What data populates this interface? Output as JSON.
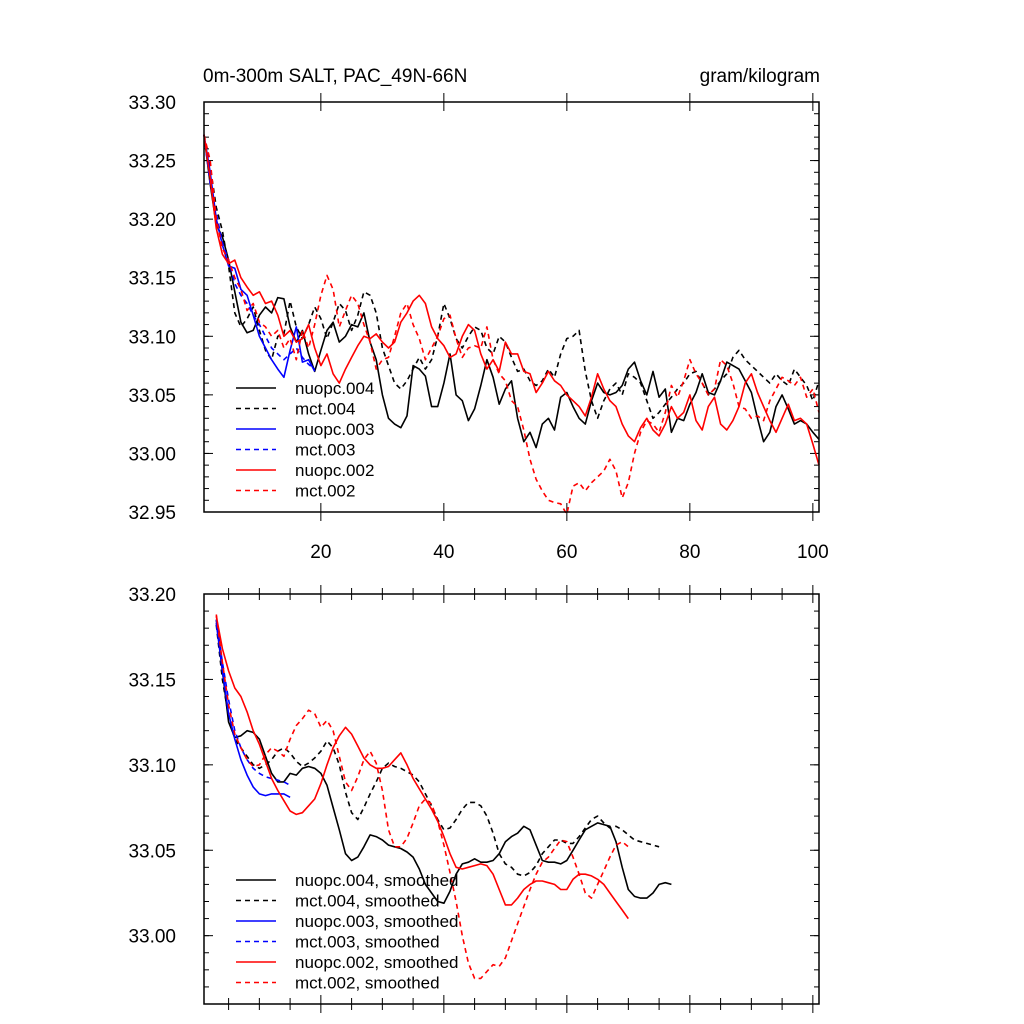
{
  "chart_data": [
    {
      "type": "line",
      "title": "0m-300m SALT, PAC_49N-66N",
      "units": "gram/kilogram",
      "xlim": [
        1,
        101
      ],
      "ylim": [
        32.95,
        33.3
      ],
      "xticks": [
        20,
        40,
        60,
        80,
        100
      ],
      "xtick_labels": [
        "20",
        "40",
        "60",
        "80",
        "100"
      ],
      "yticks": [
        32.95,
        33.0,
        33.05,
        33.1,
        33.15,
        33.2,
        33.25,
        33.3
      ],
      "ytick_labels": [
        "32.95",
        "33.00",
        "33.05",
        "33.10",
        "33.15",
        "33.20",
        "33.25",
        "33.30"
      ],
      "legend_position": "lower-left",
      "series": [
        {
          "name": "nuopc.004",
          "color": "#000000",
          "dash": "solid",
          "x_start": 1,
          "values": [
            33.272,
            33.23,
            33.195,
            33.185,
            33.165,
            33.138,
            33.112,
            33.103,
            33.105,
            33.118,
            33.125,
            33.12,
            33.133,
            33.132,
            33.108,
            33.095,
            33.105,
            33.085,
            33.07,
            33.088,
            33.105,
            33.112,
            33.095,
            33.1,
            33.11,
            33.108,
            33.12,
            33.095,
            33.08,
            33.05,
            33.03,
            33.025,
            33.022,
            33.032,
            33.075,
            33.072,
            33.066,
            33.04,
            33.04,
            33.06,
            33.085,
            33.05,
            33.045,
            33.028,
            33.038,
            33.058,
            33.08,
            33.065,
            33.042,
            33.055,
            33.062,
            33.03,
            33.01,
            33.018,
            33.005,
            33.025,
            33.03,
            33.02,
            33.048,
            33.052,
            33.04,
            33.03,
            33.025,
            33.045,
            33.06,
            33.052,
            33.05,
            33.052,
            33.058,
            33.072,
            33.078,
            33.062,
            33.05,
            33.07,
            33.048,
            33.055,
            33.018,
            33.03,
            33.028,
            33.042,
            33.052,
            33.068,
            33.052,
            33.05,
            33.062,
            33.078,
            33.075,
            33.072,
            33.062,
            33.052,
            33.03,
            33.01,
            33.018,
            33.04,
            33.05,
            33.038,
            33.025,
            33.028,
            33.025,
            33.018,
            33.012
          ]
        },
        {
          "name": "mct.004",
          "color": "#000000",
          "dash": "dashed",
          "x_start": 1,
          "values": [
            33.272,
            33.245,
            33.21,
            33.19,
            33.16,
            33.12,
            33.108,
            33.115,
            33.125,
            33.105,
            33.088,
            33.08,
            33.1,
            33.102,
            33.13,
            33.108,
            33.098,
            33.11,
            33.125,
            33.115,
            33.098,
            33.112,
            33.128,
            33.122,
            33.105,
            33.118,
            33.138,
            33.135,
            33.12,
            33.09,
            33.075,
            33.06,
            33.055,
            33.062,
            33.072,
            33.082,
            33.072,
            33.08,
            33.1,
            33.128,
            33.115,
            33.098,
            33.09,
            33.1,
            33.108,
            33.105,
            33.09,
            33.085,
            33.1,
            33.095,
            33.082,
            33.07,
            33.072,
            33.062,
            33.058,
            33.062,
            33.072,
            33.065,
            33.085,
            33.098,
            33.1,
            33.105,
            33.07,
            33.045,
            33.03,
            33.045,
            33.055,
            33.06,
            33.05,
            33.068,
            33.065,
            33.06,
            33.045,
            33.03,
            33.035,
            33.042,
            33.048,
            33.055,
            33.06,
            33.068,
            33.07,
            33.06,
            33.05,
            33.055,
            33.062,
            33.068,
            33.082,
            33.088,
            33.08,
            33.075,
            33.07,
            33.065,
            33.06,
            33.068,
            33.062,
            33.058,
            33.072,
            33.065,
            33.058,
            33.045,
            33.062
          ]
        },
        {
          "name": "nuopc.003",
          "color": "#0000ff",
          "dash": "solid",
          "x_start": 1,
          "values": [
            33.272,
            33.24,
            33.2,
            33.178,
            33.16,
            33.158,
            33.14,
            33.135,
            33.118,
            33.1,
            33.09,
            33.08,
            33.072,
            33.065,
            33.088,
            33.108,
            33.078,
            33.08,
            33.07
          ]
        },
        {
          "name": "mct.003",
          "color": "#0000ff",
          "dash": "dashed",
          "x_start": 1,
          "values": [
            33.272,
            33.23,
            33.205,
            33.18,
            33.165,
            33.145,
            33.135,
            33.128,
            33.118,
            33.11,
            33.1,
            33.09,
            33.085,
            33.08,
            33.085,
            33.09,
            33.082,
            33.076,
            33.072
          ]
        },
        {
          "name": "nuopc.002",
          "color": "#ff0000",
          "dash": "solid",
          "x_start": 1,
          "values": [
            33.272,
            33.235,
            33.192,
            33.17,
            33.162,
            33.165,
            33.15,
            33.142,
            33.135,
            33.138,
            33.128,
            33.13,
            33.118,
            33.1,
            33.105,
            33.095,
            33.098,
            33.11,
            33.09,
            33.075,
            33.085,
            33.068,
            33.06,
            33.072,
            33.082,
            33.092,
            33.1,
            33.098,
            33.102,
            33.095,
            33.09,
            33.095,
            33.112,
            33.12,
            33.13,
            33.135,
            33.128,
            33.108,
            33.098,
            33.092,
            33.082,
            33.085,
            33.1,
            33.11,
            33.105,
            33.085,
            33.072,
            33.08,
            33.07,
            33.095,
            33.085,
            33.085,
            33.07,
            33.068,
            33.052,
            33.06,
            33.07,
            33.062,
            33.058,
            33.05,
            33.045,
            33.04,
            33.032,
            33.048,
            33.068,
            33.055,
            33.045,
            33.04,
            33.025,
            33.015,
            33.01,
            33.022,
            33.03,
            33.02,
            33.015,
            33.025,
            33.04,
            33.03,
            33.035,
            33.05,
            33.028,
            33.02,
            33.04,
            33.048,
            33.025,
            33.02,
            33.028,
            33.04,
            33.06,
            33.068,
            33.052,
            33.04,
            33.028,
            33.018,
            33.03,
            33.042,
            33.028,
            33.03,
            33.025,
            33.008,
            32.99
          ]
        },
        {
          "name": "mct.002",
          "color": "#ff0000",
          "dash": "dashed",
          "x_start": 1,
          "values": [
            33.272,
            33.25,
            33.2,
            33.175,
            33.165,
            33.15,
            33.14,
            33.122,
            33.128,
            33.112,
            33.108,
            33.1,
            33.105,
            33.09,
            33.098,
            33.08,
            33.105,
            33.09,
            33.11,
            33.135,
            33.152,
            33.14,
            33.108,
            33.122,
            33.135,
            33.128,
            33.11,
            33.095,
            33.072,
            33.08,
            33.082,
            33.1,
            33.12,
            33.128,
            33.11,
            33.098,
            33.08,
            33.09,
            33.1,
            33.115,
            33.118,
            33.098,
            33.082,
            33.09,
            33.092,
            33.09,
            33.108,
            33.08,
            33.068,
            33.062,
            33.045,
            33.04,
            33.02,
            32.995,
            32.978,
            32.968,
            32.96,
            32.958,
            32.957,
            32.948,
            32.972,
            32.975,
            32.968,
            32.975,
            32.98,
            32.985,
            32.995,
            32.985,
            32.962,
            32.975,
            33.0,
            33.018,
            33.028,
            33.025,
            33.018,
            33.035,
            33.058,
            33.048,
            33.062,
            33.08,
            33.068,
            33.06,
            33.05,
            33.055,
            33.08,
            33.075,
            33.06,
            33.04,
            33.038,
            33.03,
            33.032,
            33.028,
            33.045,
            33.055,
            33.065,
            33.062,
            33.058,
            33.065,
            33.048,
            33.055,
            33.035
          ]
        }
      ],
      "legend": [
        "nuopc.004",
        "mct.004",
        "nuopc.003",
        "mct.003",
        "nuopc.002",
        "mct.002"
      ]
    },
    {
      "type": "line",
      "title": "",
      "xlim": [
        1,
        101
      ],
      "ylim": [
        32.96,
        33.2
      ],
      "xticks": [
        5,
        10,
        15,
        20,
        25,
        30,
        35,
        40,
        45,
        50,
        55,
        60,
        65,
        70,
        75,
        80,
        85,
        90,
        95,
        100
      ],
      "yticks": [
        33.0,
        33.05,
        33.1,
        33.15,
        33.2
      ],
      "ytick_labels": [
        "33.00",
        "33.05",
        "33.10",
        "33.15",
        "33.20"
      ],
      "legend_position": "lower-left",
      "series": [
        {
          "name": "nuopc.004, smoothed",
          "color": "#000000",
          "dash": "solid",
          "x_start": 3,
          "values": [
            33.185,
            33.155,
            33.125,
            33.116,
            33.117,
            33.12,
            33.119,
            33.115,
            33.105,
            33.095,
            33.09,
            33.09,
            33.095,
            33.094,
            33.098,
            33.099,
            33.098,
            33.095,
            33.088,
            33.075,
            33.062,
            33.048,
            33.044,
            33.046,
            33.052,
            33.059,
            33.058,
            33.056,
            33.053,
            33.052,
            33.051,
            33.049,
            33.046,
            33.039,
            33.03,
            33.025,
            33.02,
            33.019,
            33.026,
            33.036,
            33.042,
            33.043,
            33.045,
            33.043,
            33.043,
            33.044,
            33.048,
            33.055,
            33.058,
            33.06,
            33.064,
            33.062,
            33.053,
            33.044,
            33.043,
            33.043,
            33.042,
            33.044,
            33.05,
            33.056,
            33.062,
            33.064,
            33.066,
            33.065,
            33.064,
            33.055,
            33.04,
            33.027,
            33.023,
            33.022,
            33.022,
            33.025,
            33.03,
            33.031,
            33.03
          ]
        },
        {
          "name": "mct.004, smoothed",
          "color": "#000000",
          "dash": "dashed",
          "x_start": 3,
          "values": [
            33.182,
            33.15,
            33.128,
            33.115,
            33.11,
            33.105,
            33.1,
            33.098,
            33.1,
            33.103,
            33.108,
            33.11,
            33.107,
            33.102,
            33.099,
            33.101,
            33.104,
            33.108,
            33.114,
            33.11,
            33.1,
            33.084,
            33.072,
            33.068,
            33.075,
            33.083,
            33.09,
            33.098,
            33.101,
            33.099,
            33.098,
            33.096,
            33.094,
            33.09,
            33.083,
            33.076,
            33.068,
            33.062,
            33.063,
            33.068,
            33.074,
            33.078,
            33.078,
            33.076,
            33.07,
            33.06,
            33.048,
            33.042,
            33.04,
            33.036,
            33.035,
            33.037,
            33.041,
            33.048,
            33.052,
            33.056,
            33.056,
            33.054,
            33.054,
            33.058,
            33.063,
            33.068,
            33.07,
            33.066,
            33.063,
            33.064,
            33.062,
            33.059,
            33.056,
            33.055,
            33.054,
            33.053,
            33.052
          ]
        },
        {
          "name": "nuopc.003, smoothed",
          "color": "#0000ff",
          "dash": "solid",
          "x_start": 3,
          "values": [
            33.183,
            33.155,
            33.13,
            33.115,
            33.103,
            33.094,
            33.087,
            33.083,
            33.082,
            33.083,
            33.083,
            33.083,
            33.081
          ]
        },
        {
          "name": "mct.003, smoothed",
          "color": "#0000ff",
          "dash": "dashed",
          "x_start": 3,
          "values": [
            33.185,
            33.16,
            33.138,
            33.12,
            33.11,
            33.103,
            33.098,
            33.095,
            33.093,
            33.092,
            33.091,
            33.09,
            33.088
          ]
        },
        {
          "name": "nuopc.002, smoothed",
          "color": "#ff0000",
          "dash": "solid",
          "x_start": 3,
          "values": [
            33.187,
            33.168,
            33.155,
            33.145,
            33.14,
            33.131,
            33.12,
            33.112,
            33.102,
            33.092,
            33.085,
            33.079,
            33.073,
            33.071,
            33.072,
            33.076,
            33.08,
            33.089,
            33.1,
            33.11,
            33.117,
            33.122,
            33.118,
            33.111,
            33.104,
            33.1,
            33.098,
            33.098,
            33.099,
            33.103,
            33.107,
            33.1,
            33.092,
            33.086,
            33.08,
            33.074,
            33.067,
            33.058,
            33.048,
            33.04,
            33.039,
            33.04,
            33.041,
            33.042,
            33.041,
            33.036,
            33.027,
            33.018,
            33.018,
            33.022,
            33.027,
            33.03,
            33.032,
            33.032,
            33.031,
            33.03,
            33.027,
            33.027,
            33.033,
            33.036,
            33.036,
            33.035,
            33.033,
            33.03,
            33.025,
            33.02,
            33.015,
            33.01
          ]
        },
        {
          "name": "mct.002, smoothed",
          "color": "#ff0000",
          "dash": "dashed",
          "x_start": 3,
          "values": [
            33.188,
            33.16,
            33.135,
            33.118,
            33.11,
            33.103,
            33.099,
            33.1,
            33.106,
            33.11,
            33.108,
            33.105,
            33.115,
            33.123,
            33.127,
            33.132,
            33.13,
            33.122,
            33.126,
            33.12,
            33.105,
            33.09,
            33.085,
            33.093,
            33.103,
            33.108,
            33.101,
            33.085,
            33.062,
            33.052,
            33.052,
            33.057,
            33.066,
            33.076,
            33.08,
            33.077,
            33.067,
            33.053,
            33.037,
            33.02,
            33.0,
            32.984,
            32.975,
            32.975,
            32.979,
            32.983,
            32.982,
            32.987,
            32.997,
            33.007,
            33.017,
            33.027,
            33.036,
            33.043,
            33.046,
            33.051,
            33.056,
            33.055,
            33.046,
            33.036,
            33.025,
            33.022,
            33.03,
            33.038,
            33.046,
            33.053,
            33.055,
            33.052
          ]
        }
      ],
      "legend": [
        "nuopc.004, smoothed",
        "mct.004, smoothed",
        "nuopc.003, smoothed",
        "mct.003, smoothed",
        "nuopc.002, smoothed",
        "mct.002, smoothed"
      ]
    }
  ]
}
